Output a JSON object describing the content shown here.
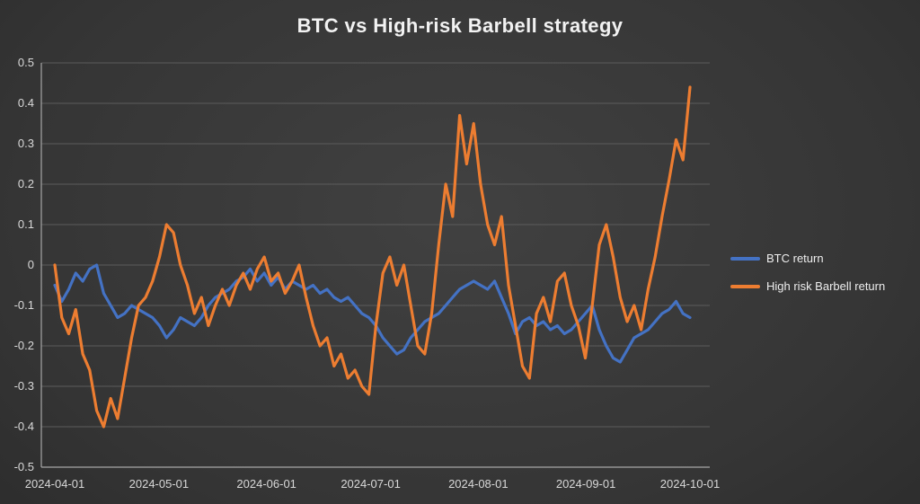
{
  "title": "BTC vs High-risk Barbell strategy",
  "colors": {
    "background_center": "#414141",
    "background_edge": "#262626",
    "gridline": "#5c5c5c",
    "axis": "#a6a6a6",
    "tick_label": "#d9d9d9",
    "title_text": "#f2f2f2",
    "btc_line": "#4472C4",
    "barbell_line": "#ED7D31"
  },
  "chart_data": {
    "type": "line",
    "title": "BTC vs High-risk Barbell strategy",
    "xlabel": "",
    "ylabel": "",
    "ylim": [
      -0.5,
      0.5
    ],
    "y_ticks": [
      0.5,
      0.4,
      0.3,
      0.2,
      0.1,
      0,
      -0.1,
      -0.2,
      -0.3,
      -0.4,
      -0.5
    ],
    "x_tick_labels": [
      "2024-04-01",
      "2024-05-01",
      "2024-06-01",
      "2024-07-01",
      "2024-08-01",
      "2024-09-01",
      "2024-10-01"
    ],
    "x_range": [
      "2024-04-01",
      "2024-10-01"
    ],
    "x_spacing": "values sampled evenly across date range",
    "grid": true,
    "legend_position": "right",
    "series": [
      {
        "name": "BTC return",
        "color": "#4472C4",
        "values": [
          -0.05,
          -0.09,
          -0.06,
          -0.02,
          -0.04,
          -0.01,
          0.0,
          -0.07,
          -0.1,
          -0.13,
          -0.12,
          -0.1,
          -0.11,
          -0.12,
          -0.13,
          -0.15,
          -0.18,
          -0.16,
          -0.13,
          -0.14,
          -0.15,
          -0.13,
          -0.1,
          -0.08,
          -0.07,
          -0.06,
          -0.04,
          -0.03,
          -0.01,
          -0.04,
          -0.02,
          -0.05,
          -0.03,
          -0.06,
          -0.04,
          -0.05,
          -0.06,
          -0.05,
          -0.07,
          -0.06,
          -0.08,
          -0.09,
          -0.08,
          -0.1,
          -0.12,
          -0.13,
          -0.15,
          -0.18,
          -0.2,
          -0.22,
          -0.21,
          -0.18,
          -0.16,
          -0.14,
          -0.13,
          -0.12,
          -0.1,
          -0.08,
          -0.06,
          -0.05,
          -0.04,
          -0.05,
          -0.06,
          -0.04,
          -0.08,
          -0.12,
          -0.17,
          -0.14,
          -0.13,
          -0.15,
          -0.14,
          -0.16,
          -0.15,
          -0.17,
          -0.16,
          -0.14,
          -0.12,
          -0.1,
          -0.16,
          -0.2,
          -0.23,
          -0.24,
          -0.21,
          -0.18,
          -0.17,
          -0.16,
          -0.14,
          -0.12,
          -0.11,
          -0.09,
          -0.12,
          -0.13
        ]
      },
      {
        "name": "High risk Barbell return",
        "color": "#ED7D31",
        "values": [
          0.0,
          -0.13,
          -0.17,
          -0.11,
          -0.22,
          -0.26,
          -0.36,
          -0.4,
          -0.33,
          -0.38,
          -0.28,
          -0.18,
          -0.1,
          -0.08,
          -0.04,
          0.02,
          0.1,
          0.08,
          0.0,
          -0.05,
          -0.12,
          -0.08,
          -0.15,
          -0.1,
          -0.06,
          -0.1,
          -0.05,
          -0.02,
          -0.06,
          -0.01,
          0.02,
          -0.04,
          -0.02,
          -0.07,
          -0.04,
          0.0,
          -0.08,
          -0.15,
          -0.2,
          -0.18,
          -0.25,
          -0.22,
          -0.28,
          -0.26,
          -0.3,
          -0.32,
          -0.15,
          -0.02,
          0.02,
          -0.05,
          0.0,
          -0.1,
          -0.2,
          -0.22,
          -0.12,
          0.05,
          0.2,
          0.12,
          0.37,
          0.25,
          0.35,
          0.2,
          0.1,
          0.05,
          0.12,
          -0.05,
          -0.15,
          -0.25,
          -0.28,
          -0.12,
          -0.08,
          -0.14,
          -0.04,
          -0.02,
          -0.1,
          -0.15,
          -0.23,
          -0.1,
          0.05,
          0.1,
          0.02,
          -0.08,
          -0.14,
          -0.1,
          -0.16,
          -0.06,
          0.02,
          0.12,
          0.21,
          0.31,
          0.26,
          0.44
        ]
      }
    ]
  }
}
